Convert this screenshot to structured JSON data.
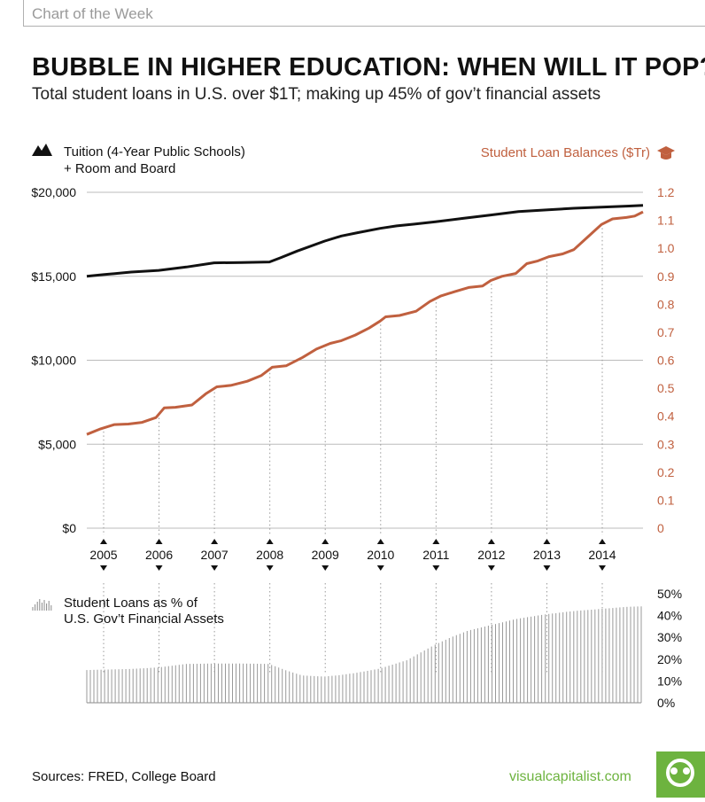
{
  "header": {
    "label": "Chart of the Week"
  },
  "title": "BUBBLE IN HIGHER EDUCATION: WHEN WILL IT POP?",
  "subtitle": "Total student loans in U.S. over $1T; making up 45% of gov’t financial assets",
  "legends": {
    "tuition_line1": "Tuition (4-Year Public Schools)",
    "tuition_line2": "+ Room and Board",
    "loans": "Student Loan Balances ($Tr)",
    "pct_line1": "Student Loans as % of",
    "pct_line2": "U.S. Gov’t Financial Assets"
  },
  "icons": {
    "tuition": "mountain-icon",
    "loans": "graduation-cap-icon",
    "pct": "mini-bars-icon",
    "logo": "visual-capitalist-logo-icon"
  },
  "footer": {
    "sources": "Sources: FRED, College Board",
    "brand": "visualcapitalist.com"
  },
  "colors": {
    "tuition": "#111111",
    "loans": "#c0603f",
    "bars": "#999999",
    "brand": "#6db33f",
    "grid": "#bbbbbb"
  },
  "chart_data": [
    {
      "type": "line",
      "title": "Tuition (4-Year Public Schools) + Room and Board vs Student Loan Balances",
      "xlabel": "",
      "x_range": [
        2004.7,
        2014.75
      ],
      "year_ticks": [
        "2005",
        "2006",
        "2007",
        "2008",
        "2009",
        "2010",
        "2011",
        "2012",
        "2013",
        "2014"
      ],
      "y_left": {
        "label": "Tuition",
        "range": [
          0,
          20000
        ],
        "ticks": [
          "$0",
          "$5,000",
          "$10,000",
          "$15,000",
          "$20,000"
        ]
      },
      "y_right": {
        "label": "Student Loan Balances ($Tr)",
        "range": [
          0,
          1.2
        ],
        "ticks": [
          "0",
          "0.1",
          "0.2",
          "0.3",
          "0.4",
          "0.5",
          "0.6",
          "0.7",
          "0.8",
          "0.9",
          "1.0",
          "1.1",
          "1.2"
        ]
      },
      "series": [
        {
          "name": "Tuition (4-Year Public Schools) + Room and Board",
          "axis": "left",
          "x": [
            2004.7,
            2005,
            2005.5,
            2006,
            2006.5,
            2007,
            2007.5,
            2008,
            2008.2,
            2008.5,
            2009,
            2009.3,
            2009.6,
            2010,
            2010.3,
            2010.6,
            2011,
            2011.5,
            2012,
            2012.5,
            2013,
            2013.5,
            2014,
            2014.5,
            2014.75
          ],
          "values": [
            15000,
            15100,
            15250,
            15350,
            15550,
            15800,
            15820,
            15850,
            16100,
            16500,
            17100,
            17400,
            17600,
            17850,
            18000,
            18100,
            18250,
            18450,
            18650,
            18850,
            18950,
            19050,
            19120,
            19180,
            19220
          ]
        },
        {
          "name": "Student Loan Balances ($Tr)",
          "axis": "right",
          "x": [
            2004.7,
            2004.95,
            2005.2,
            2005.45,
            2005.7,
            2005.95,
            2006.1,
            2006.3,
            2006.6,
            2006.85,
            2007.05,
            2007.3,
            2007.6,
            2007.85,
            2008.05,
            2008.3,
            2008.6,
            2008.85,
            2009.1,
            2009.3,
            2009.55,
            2009.8,
            2010.0,
            2010.1,
            2010.35,
            2010.65,
            2010.9,
            2011.1,
            2011.35,
            2011.6,
            2011.85,
            2012.0,
            2012.2,
            2012.45,
            2012.65,
            2012.85,
            2013.05,
            2013.3,
            2013.5,
            2013.75,
            2014.0,
            2014.2,
            2014.45,
            2014.6,
            2014.75
          ],
          "values": [
            0.335,
            0.355,
            0.37,
            0.372,
            0.378,
            0.395,
            0.43,
            0.432,
            0.44,
            0.48,
            0.505,
            0.51,
            0.525,
            0.545,
            0.575,
            0.58,
            0.61,
            0.64,
            0.66,
            0.67,
            0.69,
            0.715,
            0.74,
            0.755,
            0.76,
            0.775,
            0.81,
            0.83,
            0.845,
            0.86,
            0.865,
            0.885,
            0.9,
            0.91,
            0.945,
            0.955,
            0.97,
            0.98,
            0.995,
            1.04,
            1.085,
            1.105,
            1.11,
            1.115,
            1.13
          ]
        }
      ]
    },
    {
      "type": "bar",
      "title": "Student Loans as % of U.S. Gov’t Financial Assets",
      "x_range": [
        2004.7,
        2014.75
      ],
      "ylim": [
        0,
        50
      ],
      "y_ticks": [
        "0%",
        "10%",
        "20%",
        "30%",
        "40%",
        "50%"
      ],
      "x": [
        2004.7,
        2005,
        2005.5,
        2006,
        2006.5,
        2007,
        2007.5,
        2008,
        2008.3,
        2008.6,
        2009,
        2009.3,
        2009.6,
        2010,
        2010.5,
        2011,
        2011.3,
        2011.6,
        2012,
        2012.5,
        2013,
        2013.5,
        2014,
        2014.5,
        2014.75
      ],
      "values": [
        15,
        15.2,
        15.5,
        16.2,
        17.8,
        18,
        18,
        17.8,
        15,
        12.5,
        12,
        12.7,
        13.8,
        15.6,
        19.5,
        26.5,
        30,
        33,
        35.5,
        38.5,
        40.5,
        42,
        43,
        44,
        44.2
      ]
    }
  ]
}
